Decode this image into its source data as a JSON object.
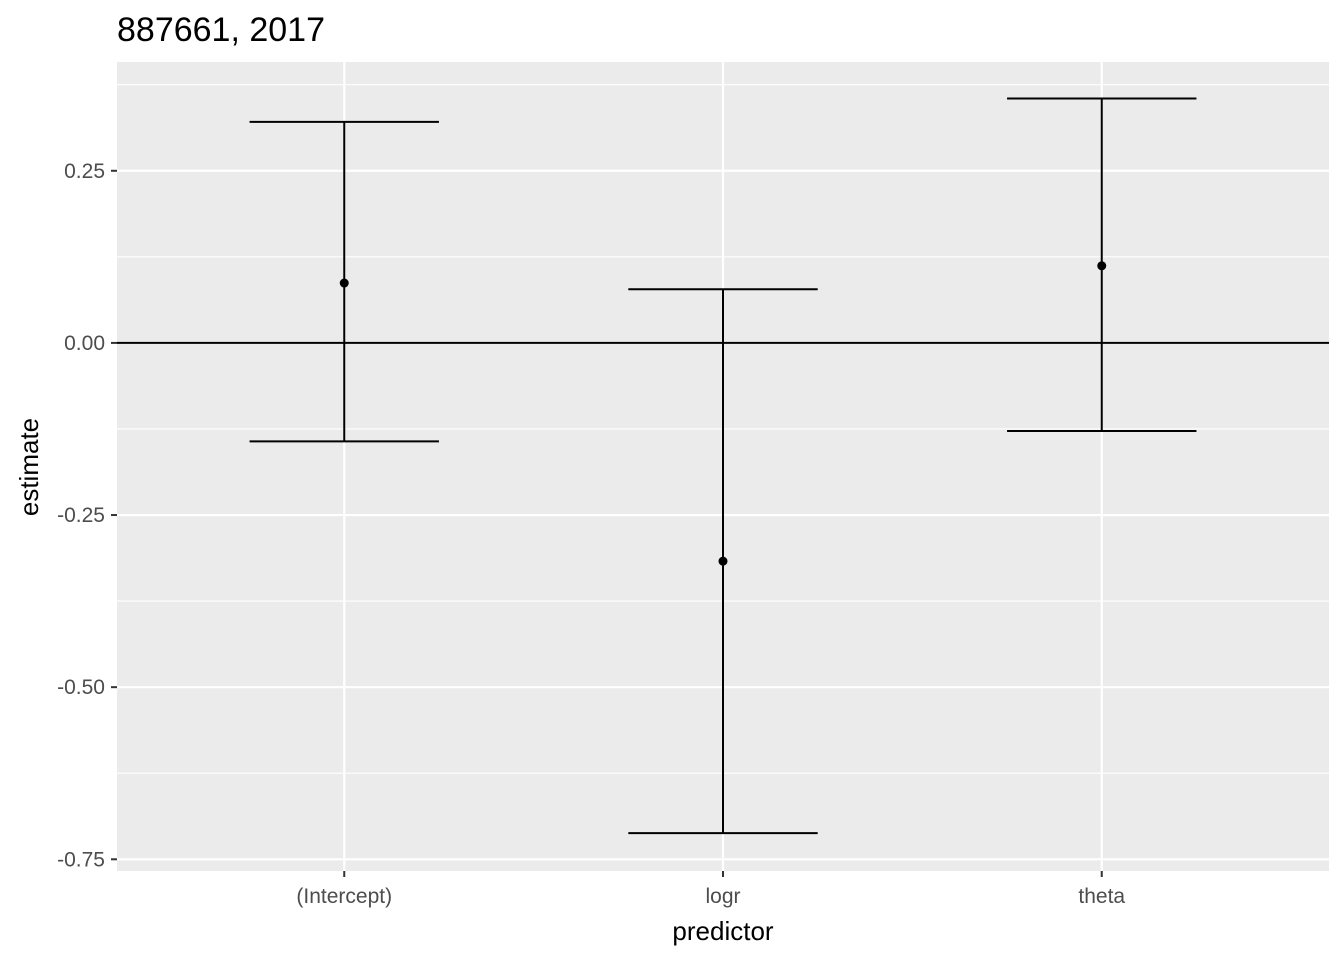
{
  "chart_data": {
    "type": "errorbar",
    "title": "887661, 2017",
    "xlabel": "predictor",
    "ylabel": "estimate",
    "categories": [
      "(Intercept)",
      "logr",
      "theta"
    ],
    "estimate": [
      0.087,
      -0.317,
      0.112
    ],
    "lower": [
      -0.143,
      -0.712,
      -0.128
    ],
    "upper": [
      0.321,
      0.078,
      0.355
    ],
    "ylim": [
      -0.767,
      0.408
    ],
    "yticks": [
      0.25,
      0.0,
      -0.25,
      -0.5,
      -0.75
    ],
    "ytick_labels": [
      "0.25",
      "0.00",
      "-0.25",
      "-0.50",
      "-0.75"
    ],
    "reference_line_y": 0,
    "grid": true,
    "colors": {
      "panel_background": "#ebebeb",
      "grid": "#ffffff",
      "marks": "#000000",
      "tick_text": "#4d4d4d"
    }
  }
}
